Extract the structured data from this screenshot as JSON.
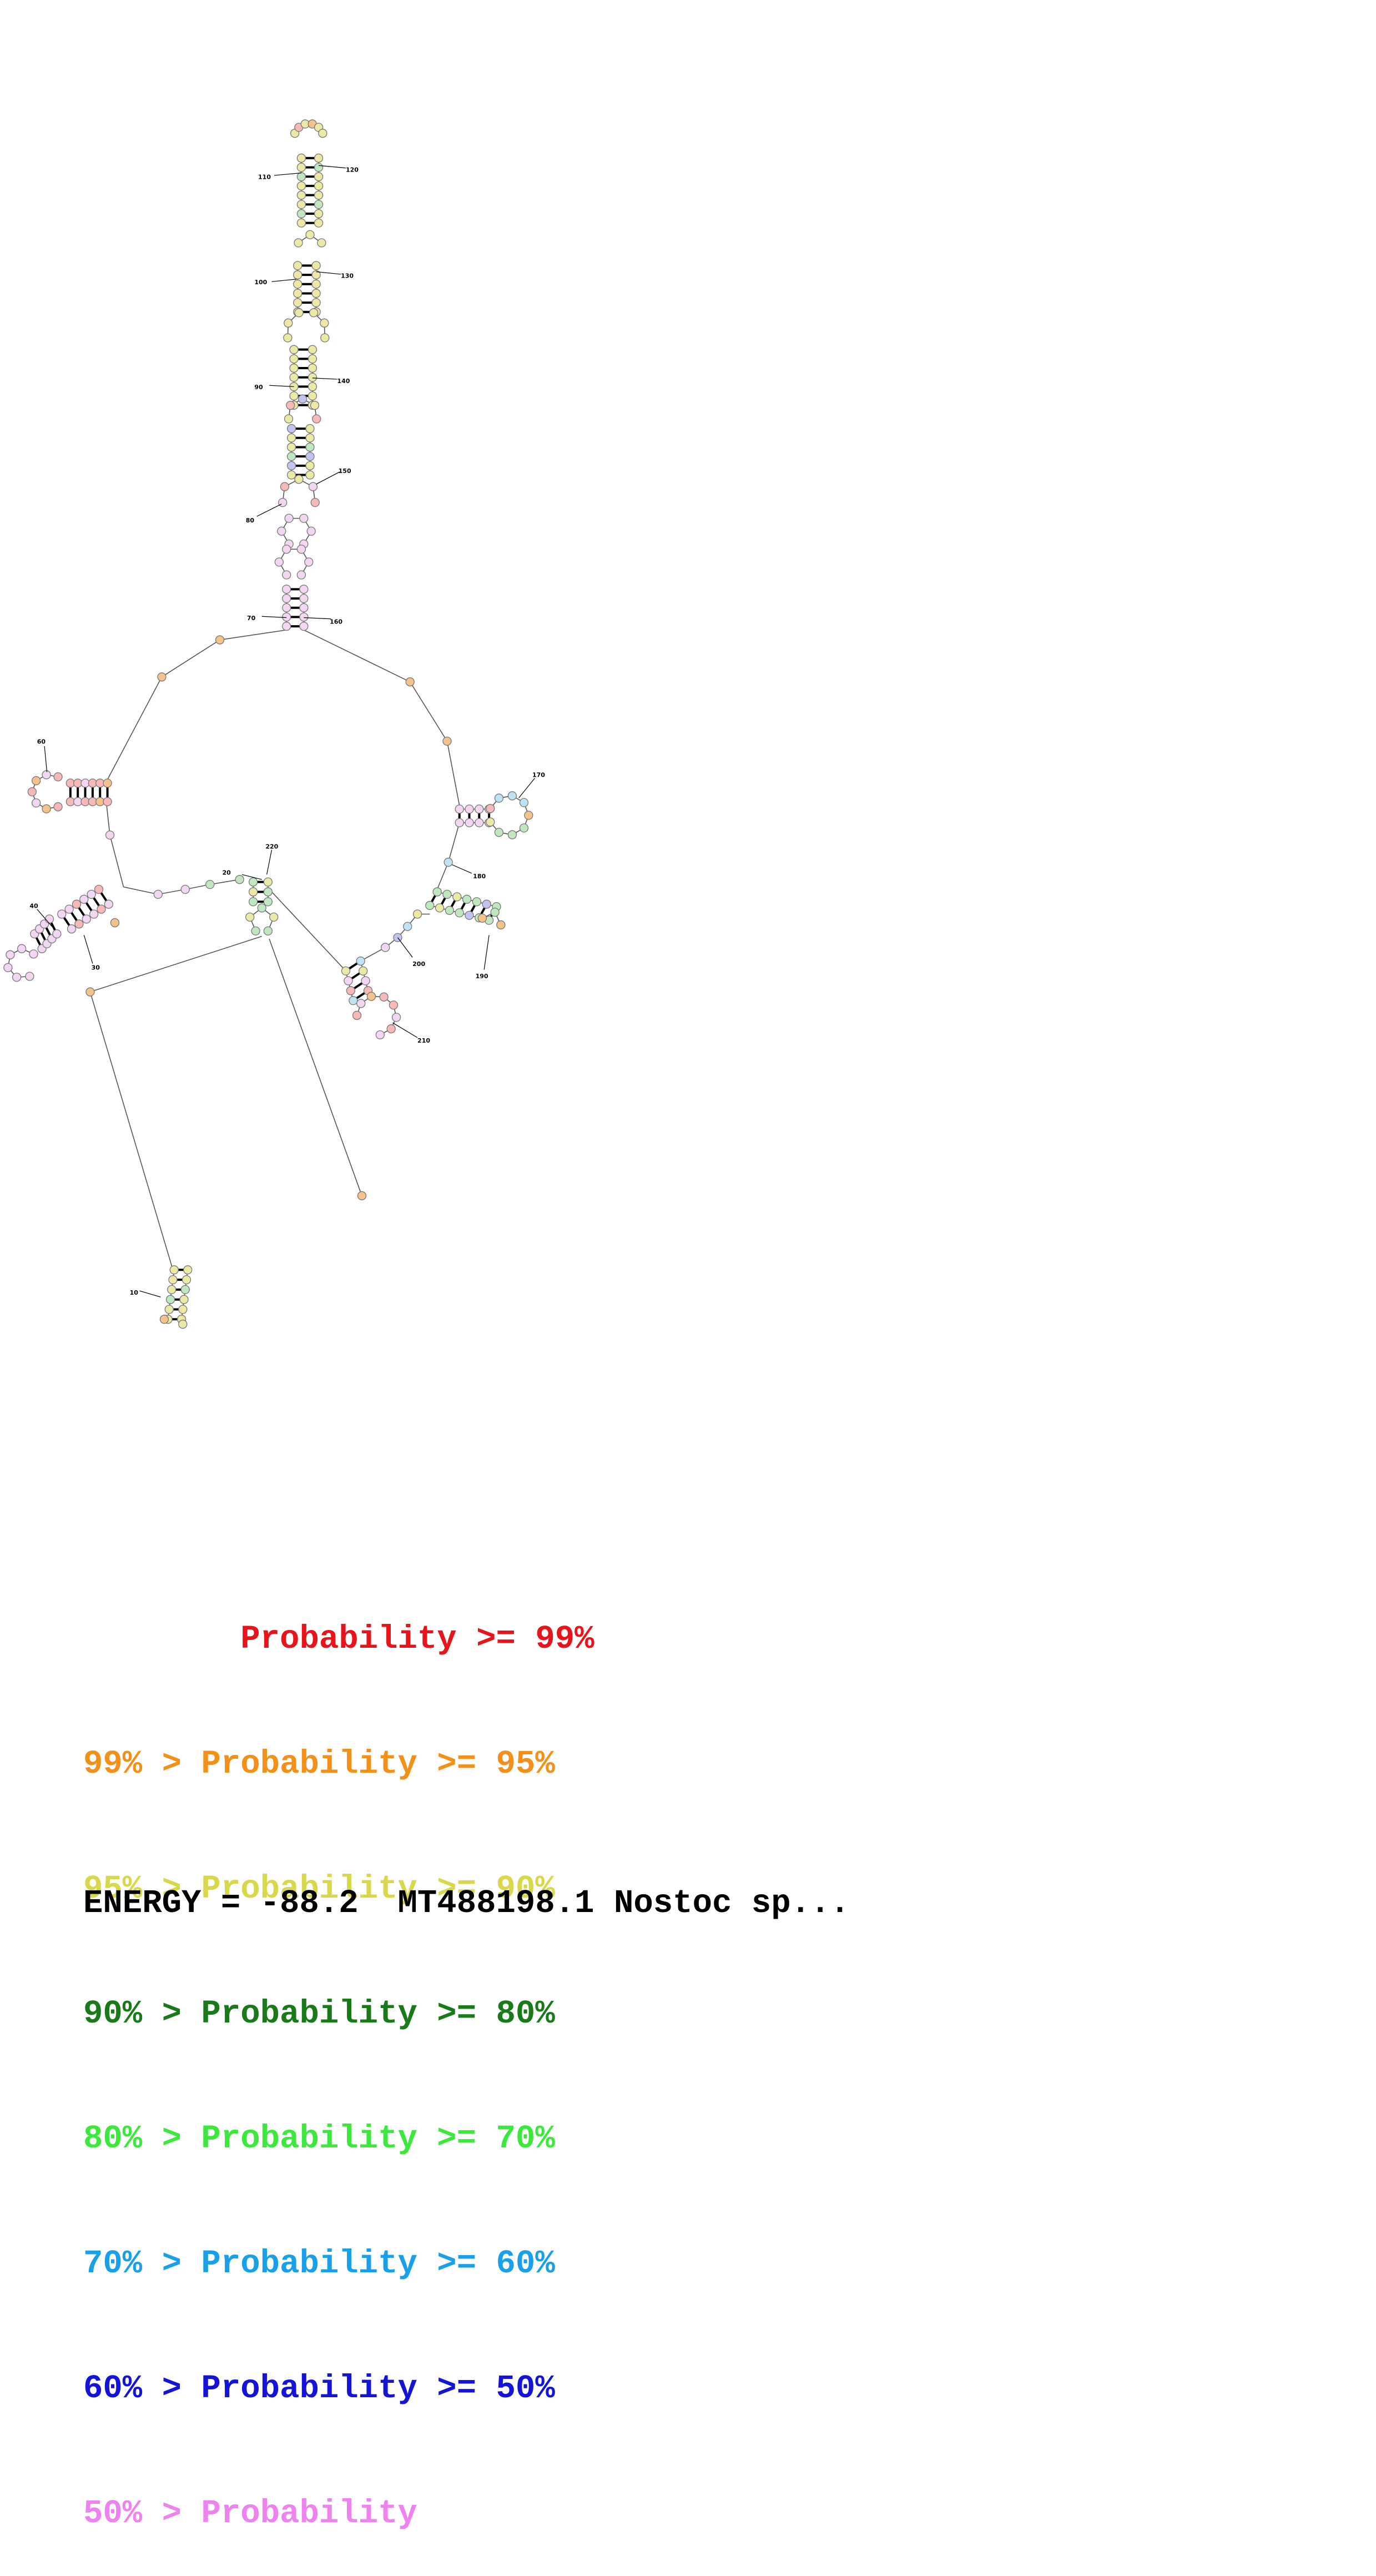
{
  "diagram": {
    "position_labels": [
      "10",
      "20",
      "30",
      "40",
      "60",
      "70",
      "80",
      "90",
      "100",
      "110",
      "120",
      "130",
      "140",
      "150",
      "160",
      "170",
      "180",
      "190",
      "200",
      "210",
      "220"
    ],
    "colors": {
      "p99": "#e8141b",
      "p95": "#f39019",
      "p90": "#d8d84a",
      "p80": "#1a7a1a",
      "p70": "#3be83b",
      "p60": "#1aa0e8",
      "p50": "#1414d8",
      "plow": "#ee82ee"
    },
    "base_fill_colors": {
      "yellow": "#ece9a6",
      "pink": "#f2d6f2",
      "orange": "#f4c28a",
      "green": "#bfe8bf",
      "red": "#f7b8b8",
      "cyan": "#bde3f5",
      "blue": "#c3c3f2"
    }
  },
  "legend": [
    {
      "prefix": "        ",
      "text": "Probability >= 99%",
      "color": "#e8141b"
    },
    {
      "prefix": "",
      "text": "99% > Probability >= 95%",
      "color": "#f39019"
    },
    {
      "prefix": "",
      "text": "95% > Probability >= 90%",
      "color": "#d8d84a"
    },
    {
      "prefix": "",
      "text": "90% > Probability >= 80%",
      "color": "#1a7a1a"
    },
    {
      "prefix": "",
      "text": "80% > Probability >= 70%",
      "color": "#3be83b"
    },
    {
      "prefix": "",
      "text": "70% > Probability >= 60%",
      "color": "#1aa0e8"
    },
    {
      "prefix": "",
      "text": "60% > Probability >= 50%",
      "color": "#1414d8"
    },
    {
      "prefix": "",
      "text": "50% > Probability",
      "color": "#ee82ee"
    }
  ],
  "energy_line": "ENERGY = -88.2  MT488198.1 Nostoc sp..."
}
